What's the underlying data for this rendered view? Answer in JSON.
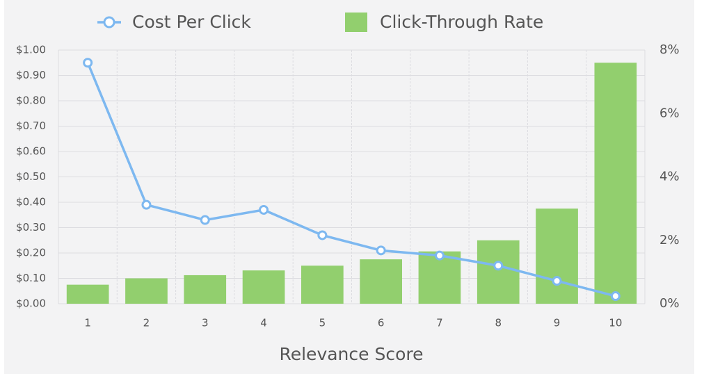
{
  "chart_data": {
    "type": "bar-line",
    "x_label": "Relevance Score",
    "categories": [
      "1",
      "2",
      "3",
      "4",
      "5",
      "6",
      "7",
      "8",
      "9",
      "10"
    ],
    "series": [
      {
        "name": "Cost Per Click",
        "type": "line",
        "color": "#7db8f0",
        "values": [
          0.95,
          0.39,
          0.33,
          0.37,
          0.27,
          0.21,
          0.19,
          0.15,
          0.09,
          0.03
        ]
      },
      {
        "name": "Click-Through Rate",
        "type": "bar",
        "axis": "y2",
        "color": "#92cf6e",
        "values": [
          0.6,
          0.8,
          0.9,
          1.05,
          1.2,
          1.4,
          1.65,
          2.0,
          3.0,
          7.6
        ]
      }
    ],
    "ylim": [
      0,
      1
    ],
    "yticks": [
      {
        "value": 0,
        "label": "$0.00"
      },
      {
        "value": 0.1,
        "label": "$0.10"
      },
      {
        "value": 0.2,
        "label": "$0.20"
      },
      {
        "value": 0.3,
        "label": "$0.30"
      },
      {
        "value": 0.4,
        "label": "$0.40"
      },
      {
        "value": 0.5,
        "label": "$0.50"
      },
      {
        "value": 0.6,
        "label": "$0.60"
      },
      {
        "value": 0.7,
        "label": "$0.70"
      },
      {
        "value": 0.8,
        "label": "$0.80"
      },
      {
        "value": 0.9,
        "label": "$0.90"
      },
      {
        "value": 1,
        "label": "$1.00"
      }
    ],
    "y2lim": [
      0,
      8
    ],
    "y2ticks": [
      {
        "value": 0,
        "label": "0%"
      },
      {
        "value": 2,
        "label": "2%"
      },
      {
        "value": 4,
        "label": "4%"
      },
      {
        "value": 6,
        "label": "6%"
      },
      {
        "value": 8,
        "label": "8%"
      }
    ],
    "grid": true
  }
}
